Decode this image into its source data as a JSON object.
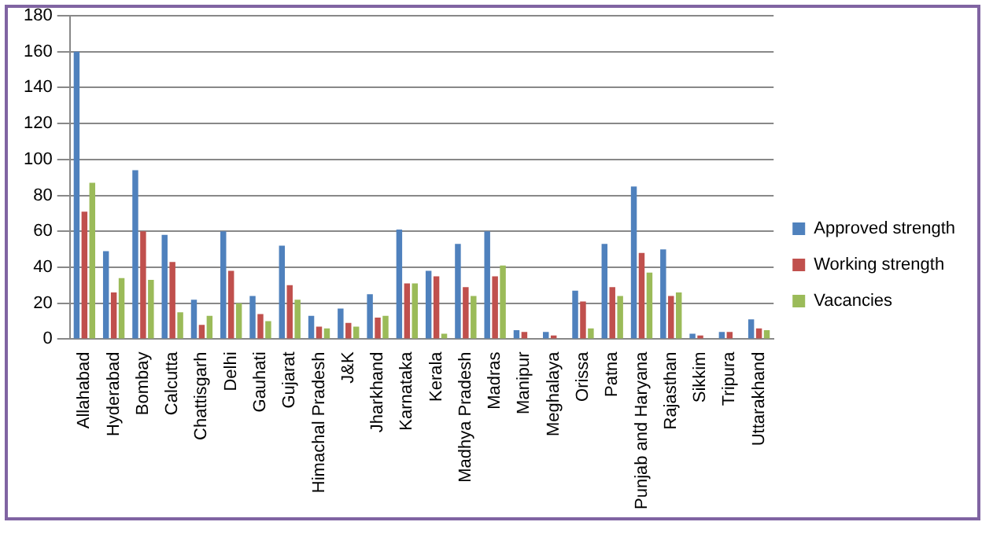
{
  "chart_data": {
    "type": "bar",
    "categories": [
      "Allahabad",
      "Hyderabad",
      "Bombay",
      "Calcutta",
      "Chattisgarh",
      "Delhi",
      "Gauhati",
      "Gujarat",
      "Himachal Pradesh",
      "J&K",
      "Jharkhand",
      "Karnataka",
      "Kerala",
      "Madhya Pradesh",
      "Madras",
      "Manipur",
      "Meghalaya",
      "Orissa",
      "Patna",
      "Punjab and Haryana",
      "Rajasthan",
      "Sikkim",
      "Tripura",
      "Uttarakhand"
    ],
    "series": [
      {
        "name": "Approved strength",
        "color": "#4f81bd",
        "values": [
          160,
          49,
          94,
          58,
          22,
          60,
          24,
          52,
          13,
          17,
          25,
          61,
          38,
          53,
          60,
          5,
          4,
          27,
          53,
          85,
          50,
          3,
          4,
          11
        ]
      },
      {
        "name": "Working strength",
        "color": "#c0504d",
        "values": [
          71,
          26,
          60,
          43,
          8,
          38,
          14,
          30,
          7,
          9,
          12,
          31,
          35,
          29,
          35,
          4,
          2,
          21,
          29,
          48,
          24,
          2,
          4,
          6
        ]
      },
      {
        "name": "Vacancies",
        "color": "#9bbb59",
        "values": [
          87,
          34,
          33,
          15,
          13,
          20,
          10,
          22,
          6,
          7,
          13,
          31,
          3,
          24,
          41,
          null,
          null,
          6,
          24,
          37,
          26,
          null,
          0,
          5
        ]
      }
    ],
    "ylim": [
      0,
      180
    ],
    "yticks": [
      0,
      20,
      40,
      60,
      80,
      100,
      120,
      140,
      160,
      180
    ],
    "grid": "y",
    "legend": "right"
  }
}
